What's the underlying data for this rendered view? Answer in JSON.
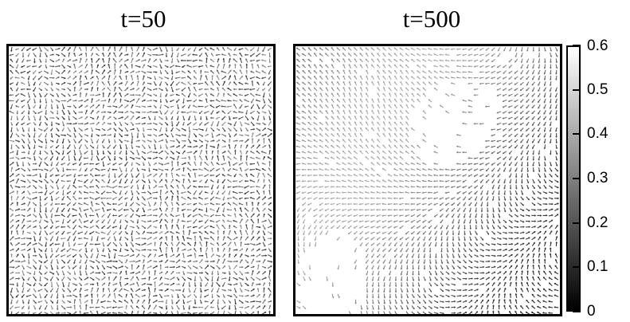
{
  "chart_data": [
    {
      "type": "vector-field",
      "title": "t=50",
      "encoding": "arrow direction = local orientation; arrow shade = magnitude (grayscale colorbar)",
      "field_character": "disordered, short-range swirls",
      "grid": false
    },
    {
      "type": "vector-field",
      "title": "t=500",
      "encoding": "arrow direction = local orientation; arrow shade = magnitude (grayscale colorbar)",
      "field_character": "ordered, large-scale flow domains with white low-density regions",
      "grid": false
    }
  ],
  "colorbar": {
    "ticks": [
      "0",
      "0.1",
      "0.2",
      "0.3",
      "0.4",
      "0.5",
      "0.6"
    ],
    "values": [
      0,
      0.1,
      0.2,
      0.3,
      0.4,
      0.5,
      0.6
    ],
    "range": [
      0,
      0.6
    ],
    "colors": [
      "#000000",
      "#ffffff"
    ],
    "placement": "right"
  }
}
